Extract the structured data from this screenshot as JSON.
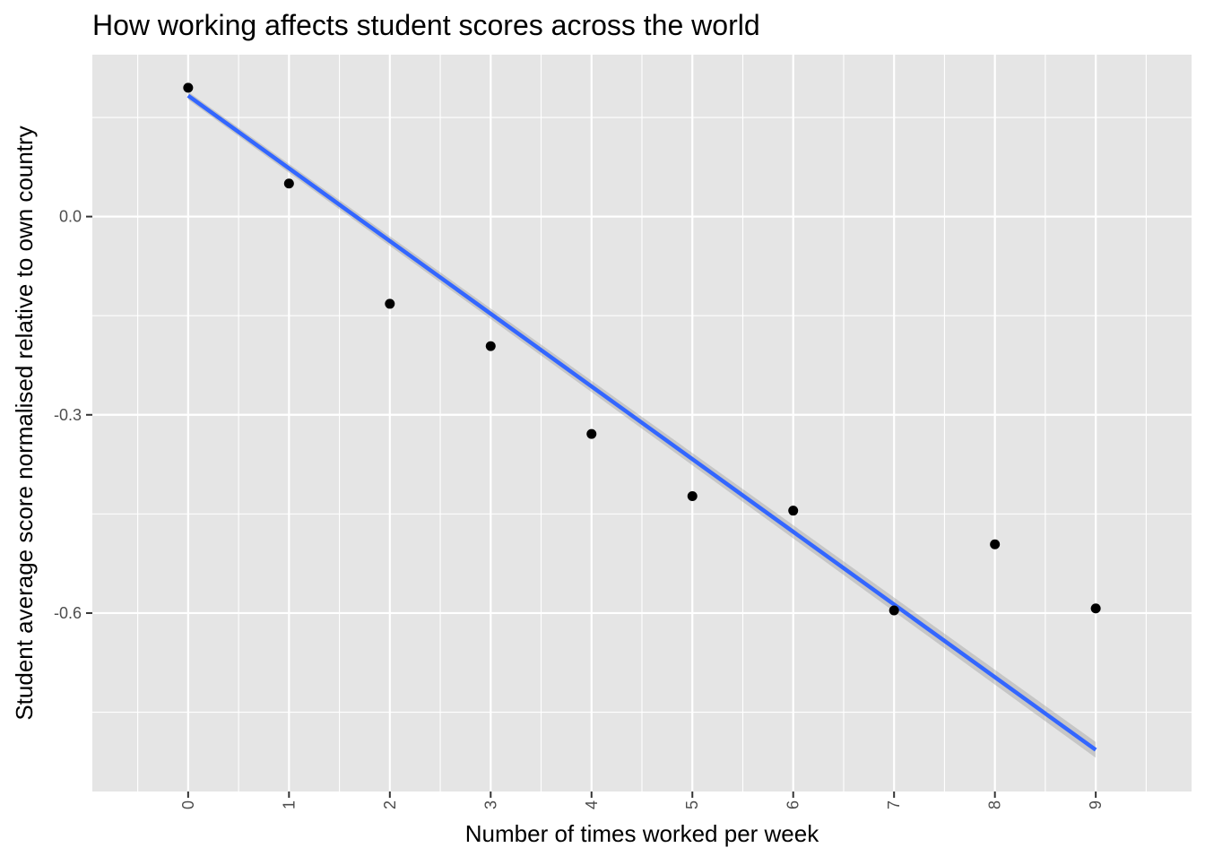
{
  "chart_data": {
    "type": "scatter",
    "title": "How working affects student scores across the world",
    "xlabel": "Number of times worked per week",
    "ylabel": "Student average score normalised relative to own country",
    "x": [
      0,
      1,
      2,
      3,
      4,
      5,
      6,
      7,
      8,
      9
    ],
    "y": [
      0.195,
      0.05,
      -0.132,
      -0.196,
      -0.329,
      -0.423,
      -0.445,
      -0.596,
      -0.496,
      -0.593
    ],
    "xlim": [
      -0.95,
      9.95
    ],
    "ylim": [
      -0.87,
      0.245
    ],
    "x_ticks": [
      0,
      1,
      2,
      3,
      4,
      5,
      6,
      7,
      8,
      9
    ],
    "x_tick_labels": [
      "0",
      "1",
      "2",
      "3",
      "4",
      "5",
      "6",
      "7",
      "8",
      "9"
    ],
    "y_ticks": [
      0.0,
      -0.3,
      -0.6
    ],
    "y_tick_labels": [
      "0.0",
      "-0.3",
      "-0.6"
    ],
    "trend_line": {
      "method": "linear",
      "x": [
        0,
        9
      ],
      "y": [
        0.183,
        -0.807
      ],
      "ci_halfwidth": [
        0.006,
        0.012
      ]
    },
    "grid": true,
    "legend": "none",
    "colors": {
      "panel_background": "#e5e5e5",
      "grid": "#ffffff",
      "points": "#000000",
      "trend_line": "#3366ff",
      "confidence_band": "#999999",
      "tick_label": "#4d4d4d"
    }
  }
}
